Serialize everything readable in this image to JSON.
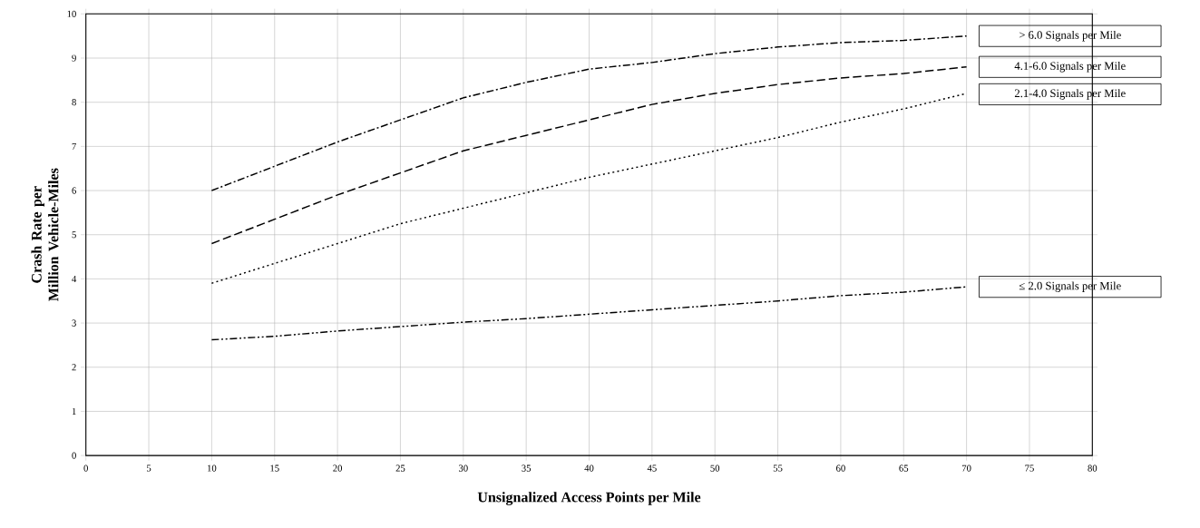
{
  "chart_data": {
    "type": "line",
    "xlabel": "Unsignalized Access Points per Mile",
    "ylabel": "Crash Rate per Million Vehicle-Miles",
    "x": [
      10,
      15,
      20,
      25,
      30,
      35,
      40,
      45,
      50,
      55,
      60,
      65,
      70
    ],
    "series": [
      {
        "name": "> 6.0 Signals per Mile",
        "color": "#000000",
        "line_style": "dashdot",
        "values": [
          6.0,
          6.55,
          7.1,
          7.6,
          8.1,
          8.45,
          8.75,
          8.9,
          9.1,
          9.25,
          9.35,
          9.4,
          9.5
        ]
      },
      {
        "name": "4.1-6.0 Signals per Mile",
        "color": "#000000",
        "line_style": "dashed",
        "values": [
          4.8,
          5.35,
          5.9,
          6.4,
          6.9,
          7.25,
          7.6,
          7.95,
          8.2,
          8.4,
          8.55,
          8.65,
          8.8
        ]
      },
      {
        "name": "2.1-4.0 Signals per Mile",
        "color": "#000000",
        "line_style": "dotted",
        "values": [
          3.9,
          4.35,
          4.8,
          5.25,
          5.6,
          5.95,
          6.3,
          6.6,
          6.9,
          7.2,
          7.55,
          7.85,
          8.2
        ]
      },
      {
        "name": "≤ 2.0 Signals per Mile",
        "color": "#000000",
        "line_style": "dashdotdot",
        "values": [
          2.62,
          2.7,
          2.82,
          2.92,
          3.02,
          3.1,
          3.2,
          3.3,
          3.4,
          3.5,
          3.62,
          3.7,
          3.82
        ]
      }
    ],
    "xlim": [
      0,
      80
    ],
    "xticks": [
      0,
      5,
      10,
      15,
      20,
      25,
      30,
      35,
      40,
      45,
      50,
      55,
      60,
      65,
      70,
      75,
      80
    ],
    "ylim": [
      0,
      10
    ],
    "yticks": [
      0,
      1,
      2,
      3,
      4,
      5,
      6,
      7,
      8,
      9,
      10
    ],
    "grid": true,
    "marker": "none"
  }
}
